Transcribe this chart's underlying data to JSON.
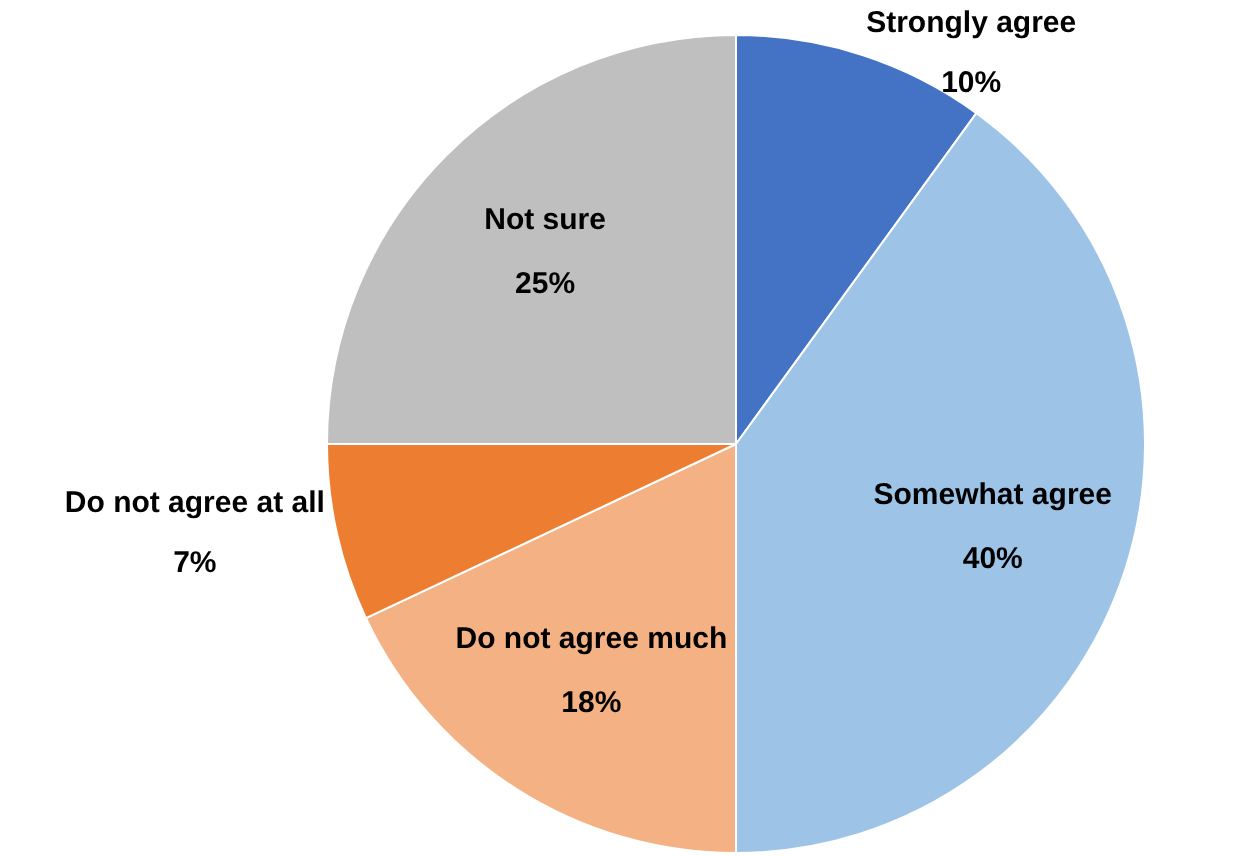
{
  "chart_data": {
    "type": "pie",
    "categories": [
      "Strongly agree",
      "Somewhat agree",
      "Do not agree much",
      "Do not agree at all",
      "Not sure"
    ],
    "values": [
      10,
      40,
      18,
      7,
      25
    ],
    "colors": [
      "#4472c4",
      "#9dc3e6",
      "#f4b183",
      "#ed7d31",
      "#bfbfbf"
    ],
    "value_labels": [
      "10%",
      "40%",
      "18%",
      "7%",
      "25%"
    ],
    "legend": false
  }
}
